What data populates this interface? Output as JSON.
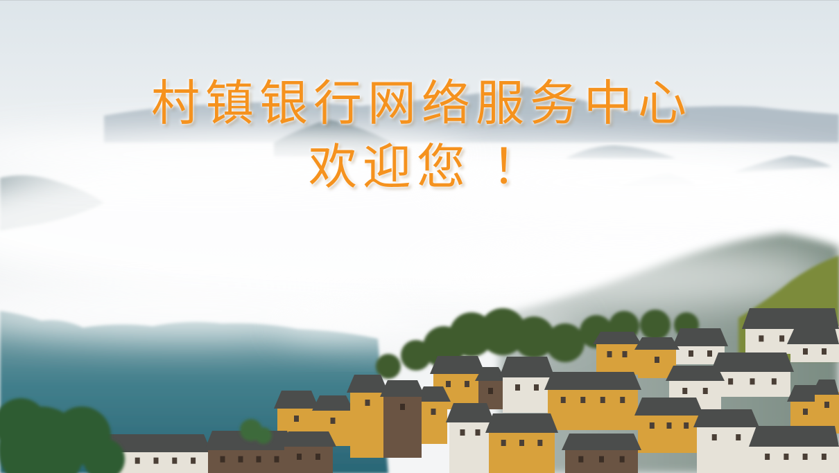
{
  "welcome": {
    "line1": "村镇银行网络服务中心",
    "line2": "欢迎您 ！"
  },
  "colors": {
    "title": "#F5921E",
    "roof": "#4b4d4c",
    "wall_yellow": "#d8a13c",
    "wall_white": "#e6e2d8"
  }
}
